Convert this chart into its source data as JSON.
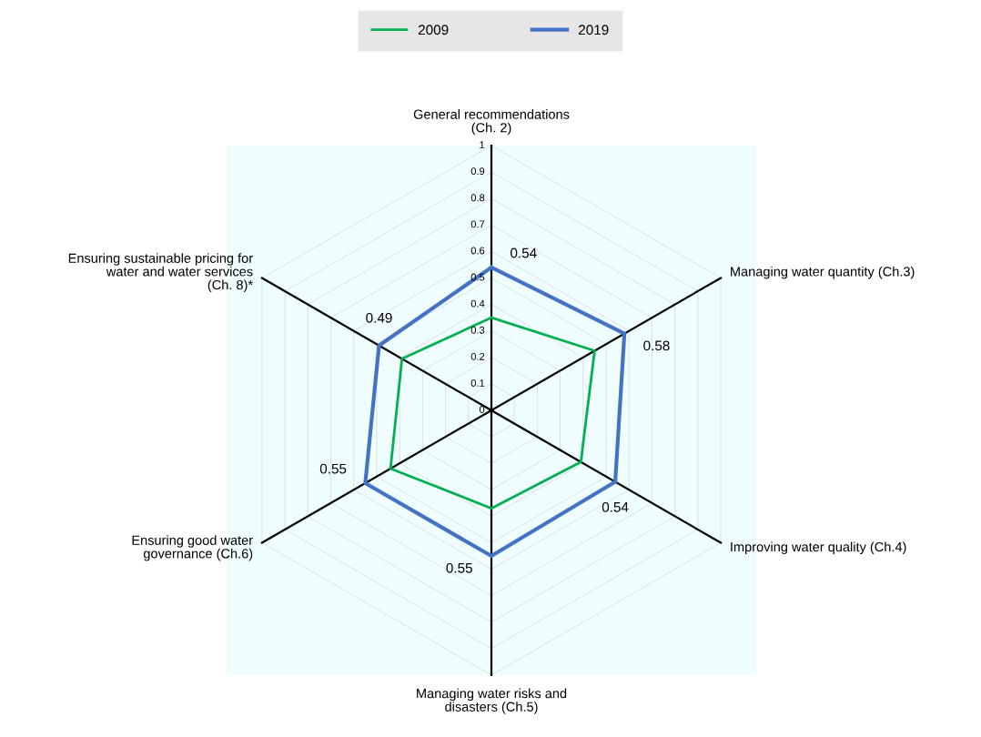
{
  "chart_data": {
    "type": "radar",
    "categories": [
      "General recommendations\n(Ch. 2)",
      "Managing water quantity (Ch.3)",
      "Improving water quality (Ch.4)",
      "Managing water risks and\ndisasters (Ch.5)",
      "Ensuring good water\ngovernance (Ch.6)",
      "Ensuring sustainable pricing for\nwater and water services\n(Ch. 8)*"
    ],
    "series": [
      {
        "name": "2009",
        "color": "#00b050",
        "values": [
          0.35,
          0.45,
          0.39,
          0.37,
          0.44,
          0.39
        ]
      },
      {
        "name": "2019",
        "color": "#4472c4",
        "values": [
          0.54,
          0.58,
          0.54,
          0.55,
          0.55,
          0.49
        ],
        "value_labels": [
          "0.54",
          "0.58",
          "0.54",
          "0.55",
          "0.55",
          "0.49"
        ]
      }
    ],
    "ylim": [
      0,
      1
    ],
    "yticks": [
      0,
      0.1,
      0.2,
      0.3,
      0.4,
      0.5,
      0.6,
      0.7,
      0.8,
      0.9,
      1
    ],
    "grid": true,
    "legend": "top"
  }
}
